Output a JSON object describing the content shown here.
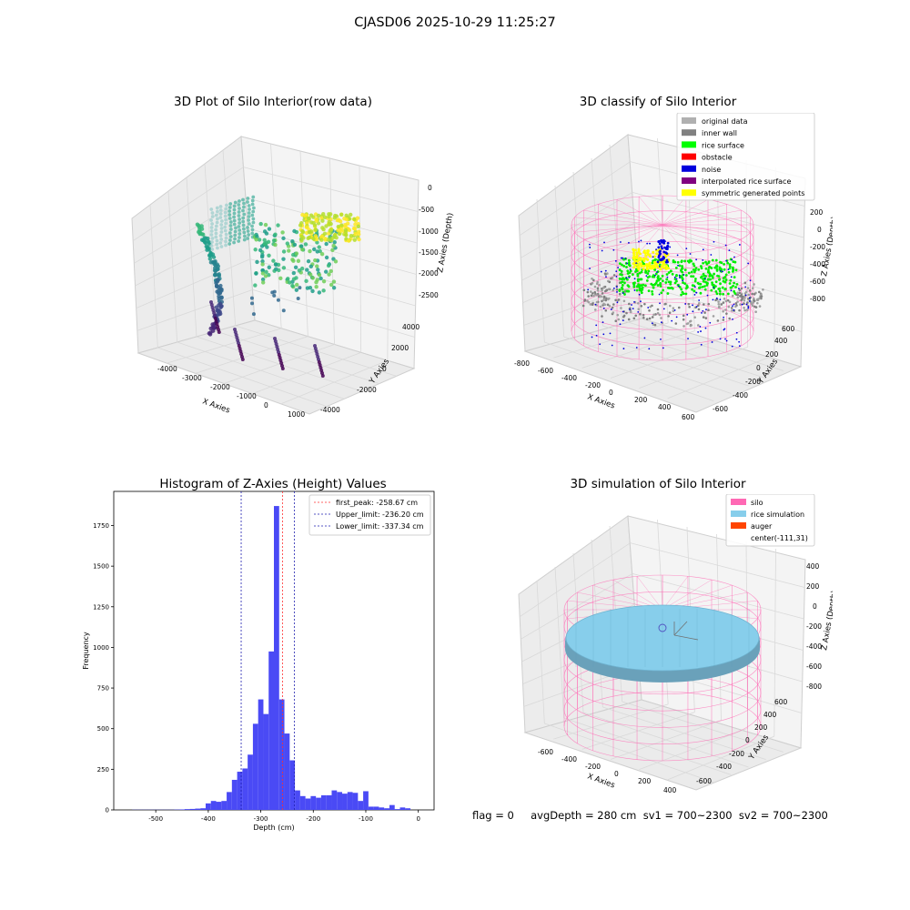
{
  "figure": {
    "suptitle": "CJASD06 2025-10-29 11:25:27",
    "status_line": "flag = 0     avgDepth = 280 cm  sv1 = 700~2300  sv2 = 700~2300"
  },
  "colors": {
    "pane": "#f2f2f2",
    "grid": "#d8d8d8",
    "hist_bar": "#4a4af5",
    "peak_line": "#ff3030",
    "limit_line": "#1f1fb0",
    "silo_wire": "#ff69b4",
    "rice_fill": "#87ceeb"
  },
  "chart_data": [
    {
      "type": "scatter",
      "projection": "3d",
      "title": "3D Plot of Silo Interior(row data)",
      "xlabel": "X Axies",
      "ylabel": "Y Axies",
      "zlabel": "Z Axies (Depth)",
      "xticks": [
        "-4000",
        "-3000",
        "-2000",
        "-1000",
        "0",
        "1000"
      ],
      "yticks": [
        "-4000",
        "-2000",
        "0",
        "2000",
        "4000"
      ],
      "zticks": [
        "0",
        "-500",
        "-1000",
        "-1500",
        "-2000",
        "-2500"
      ],
      "colormap": "viridis (colored by depth)",
      "grid": true
    },
    {
      "type": "scatter",
      "projection": "3d",
      "title": "3D classify of Silo Interior",
      "xlabel": "X Axies",
      "ylabel": "Y Axies",
      "zlabel": "Z Axies (Depth)",
      "xticks": [
        "-800",
        "-600",
        "-400",
        "-200",
        "0",
        "200",
        "400",
        "600"
      ],
      "yticks": [
        "-600",
        "-400",
        "-200",
        "0",
        "200",
        "400",
        "600"
      ],
      "zticks": [
        "200",
        "0",
        "-200",
        "-400",
        "-600",
        "-800"
      ],
      "legend_position": "upper right",
      "legend": [
        {
          "label": "original data",
          "color": "#b0b0b0"
        },
        {
          "label": "inner wall",
          "color": "#808080"
        },
        {
          "label": "rice surface",
          "color": "#00ff00"
        },
        {
          "label": "obstacle",
          "color": "#ff0000"
        },
        {
          "label": "noise",
          "color": "#0000dd"
        },
        {
          "label": "interpolated rice surface",
          "color": "#800080"
        },
        {
          "label": "symmetric generated points",
          "color": "#ffff00"
        }
      ],
      "grid": true
    },
    {
      "type": "bar",
      "title": "Histogram of Z-Axies (Height) Values",
      "xlabel": "Depth (cm)",
      "ylabel": "Frequency",
      "xlim": [
        -580,
        30
      ],
      "ylim": [
        0,
        1960
      ],
      "xticks": [
        -500,
        -400,
        -300,
        -200,
        -100,
        0
      ],
      "yticks": [
        0,
        250,
        500,
        750,
        1000,
        1250,
        1500,
        1750
      ],
      "bin_width": 10,
      "bins": [
        {
          "x": -540,
          "y": 1
        },
        {
          "x": -530,
          "y": 1
        },
        {
          "x": -520,
          "y": 1
        },
        {
          "x": -510,
          "y": 1
        },
        {
          "x": -500,
          "y": 1
        },
        {
          "x": -490,
          "y": 1
        },
        {
          "x": -480,
          "y": 1
        },
        {
          "x": -470,
          "y": 1
        },
        {
          "x": -460,
          "y": 2
        },
        {
          "x": -450,
          "y": 3
        },
        {
          "x": -440,
          "y": 5
        },
        {
          "x": -430,
          "y": 6
        },
        {
          "x": -420,
          "y": 8
        },
        {
          "x": -410,
          "y": 10
        },
        {
          "x": -400,
          "y": 40
        },
        {
          "x": -390,
          "y": 55
        },
        {
          "x": -380,
          "y": 50
        },
        {
          "x": -370,
          "y": 55
        },
        {
          "x": -360,
          "y": 110
        },
        {
          "x": -350,
          "y": 185
        },
        {
          "x": -340,
          "y": 235
        },
        {
          "x": -330,
          "y": 255
        },
        {
          "x": -320,
          "y": 340
        },
        {
          "x": -310,
          "y": 530
        },
        {
          "x": -300,
          "y": 680
        },
        {
          "x": -290,
          "y": 590
        },
        {
          "x": -280,
          "y": 975
        },
        {
          "x": -270,
          "y": 1870
        },
        {
          "x": -260,
          "y": 680
        },
        {
          "x": -250,
          "y": 470
        },
        {
          "x": -240,
          "y": 305
        },
        {
          "x": -230,
          "y": 120
        },
        {
          "x": -220,
          "y": 85
        },
        {
          "x": -210,
          "y": 70
        },
        {
          "x": -200,
          "y": 85
        },
        {
          "x": -190,
          "y": 75
        },
        {
          "x": -180,
          "y": 90
        },
        {
          "x": -170,
          "y": 90
        },
        {
          "x": -160,
          "y": 120
        },
        {
          "x": -150,
          "y": 110
        },
        {
          "x": -140,
          "y": 100
        },
        {
          "x": -130,
          "y": 110
        },
        {
          "x": -120,
          "y": 105
        },
        {
          "x": -110,
          "y": 55
        },
        {
          "x": -100,
          "y": 115
        },
        {
          "x": -90,
          "y": 20
        },
        {
          "x": -80,
          "y": 20
        },
        {
          "x": -70,
          "y": 15
        },
        {
          "x": -60,
          "y": 10
        },
        {
          "x": -50,
          "y": 30
        },
        {
          "x": -40,
          "y": 5
        },
        {
          "x": -30,
          "y": 15
        },
        {
          "x": -20,
          "y": 10
        }
      ],
      "vlines": [
        {
          "label": "first_peak: -258.67 cm",
          "x": -258.67,
          "color": "#ff3030"
        },
        {
          "label": "Upper_limit: -236.20 cm",
          "x": -236.2,
          "color": "#1f1fb0"
        },
        {
          "label": "Lower_limit: -337.34 cm",
          "x": -337.34,
          "color": "#1f1fb0"
        }
      ],
      "legend_position": "upper right",
      "grid": false
    },
    {
      "type": "area",
      "projection": "3d",
      "title": "3D simulation of Silo Interior",
      "xlabel": "X Axies",
      "ylabel": "Y Axies",
      "zlabel": "Z Axies (Depth)",
      "xticks": [
        "-600",
        "-400",
        "-200",
        "0",
        "200",
        "400"
      ],
      "yticks": [
        "-600",
        "-400",
        "-200",
        "0",
        "200",
        "400",
        "600"
      ],
      "zticks": [
        "400",
        "200",
        "0",
        "-200",
        "-400",
        "-600",
        "-800"
      ],
      "legend_position": "upper right",
      "legend": [
        {
          "label": "silo",
          "color": "#ff69b4"
        },
        {
          "label": "rice simulation",
          "color": "#87ceeb"
        },
        {
          "label": "auger",
          "color": "#ff4500"
        },
        {
          "label": "center(-111,31)",
          "color": ""
        }
      ],
      "grid": true
    }
  ]
}
